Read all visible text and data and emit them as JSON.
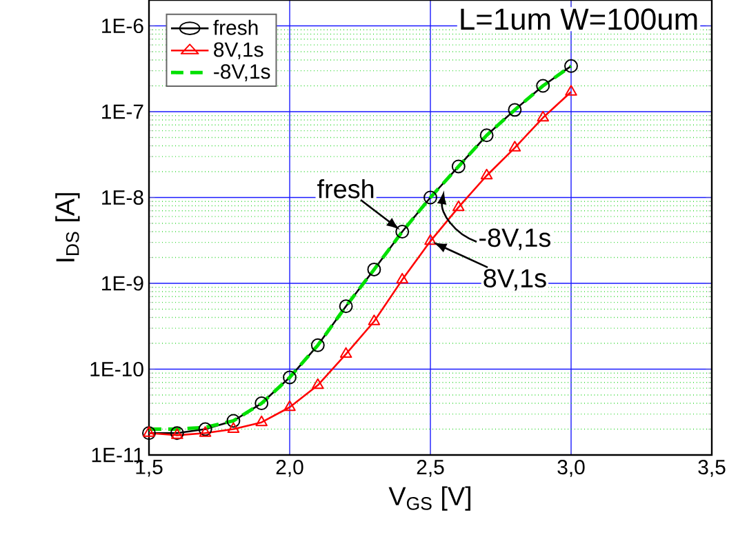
{
  "chart_data": {
    "type": "line",
    "xlabel": "V$_{GS}$ [V]",
    "ylabel": "I$_{DS}$ [A]",
    "x": [
      1.5,
      1.6,
      1.7,
      1.8,
      1.9,
      2.0,
      2.1,
      2.2,
      2.3,
      2.4,
      2.5,
      2.6,
      2.7,
      2.8,
      2.9,
      3.0
    ],
    "series": [
      {
        "name": "fresh",
        "color": "#000000",
        "marker": "circle",
        "line_style": "solid",
        "values": [
          1.8e-11,
          1.8e-11,
          2e-11,
          2.5e-11,
          4e-11,
          8e-11,
          1.9e-10,
          5.4e-10,
          1.45e-09,
          4e-09,
          1e-08,
          2.3e-08,
          5.3e-08,
          1.05e-07,
          2e-07,
          3.4e-07
        ]
      },
      {
        "name": "8V,1s",
        "color": "#ff0000",
        "marker": "triangle",
        "line_style": "solid",
        "values": [
          1.8e-11,
          1.7e-11,
          1.8e-11,
          2e-11,
          2.4e-11,
          3.6e-11,
          6.5e-11,
          1.5e-10,
          3.6e-10,
          1.1e-09,
          3.1e-09,
          7.7e-09,
          1.8e-08,
          3.8e-08,
          8.5e-08,
          1.7e-07
        ]
      },
      {
        "name": "-8V,1s",
        "color": "#00e000",
        "marker": "none",
        "line_style": "dashed",
        "values": [
          2e-11,
          2e-11,
          2.1e-11,
          2.5e-11,
          4e-11,
          8e-11,
          1.9e-10,
          5.4e-10,
          1.45e-09,
          4e-09,
          1e-08,
          2.3e-08,
          5.3e-08,
          1.05e-07,
          2e-07,
          3.4e-07
        ]
      }
    ],
    "log": "y",
    "grid": true,
    "legend": "top left",
    "xlim": [
      1.5,
      3.5
    ],
    "ylim": [
      1e-11,
      2e-06
    ],
    "xticks": [
      {
        "value": 1.5,
        "label": "1,5"
      },
      {
        "value": 2.0,
        "label": "2,0"
      },
      {
        "value": 2.5,
        "label": "2,5"
      },
      {
        "value": 3.0,
        "label": "3,0"
      },
      {
        "value": 3.5,
        "label": "3,5"
      }
    ],
    "yticks": [
      {
        "value": 1e-11,
        "label": "1E-11"
      },
      {
        "value": 2e-11,
        "label": null
      },
      {
        "value": 3e-11,
        "label": null
      },
      {
        "value": 4e-11,
        "label": null
      },
      {
        "value": 5e-11,
        "label": null
      },
      {
        "value": 6e-11,
        "label": null
      },
      {
        "value": 7e-11,
        "label": null
      },
      {
        "value": 8e-11,
        "label": null
      },
      {
        "value": 9e-11,
        "label": null
      },
      {
        "value": 1e-10,
        "label": "1E-10"
      },
      {
        "value": 2e-10,
        "label": null
      },
      {
        "value": 3e-10,
        "label": null
      },
      {
        "value": 4e-10,
        "label": null
      },
      {
        "value": 5e-10,
        "label": null
      },
      {
        "value": 6e-10,
        "label": null
      },
      {
        "value": 7e-10,
        "label": null
      },
      {
        "value": 8e-10,
        "label": null
      },
      {
        "value": 9e-10,
        "label": null
      },
      {
        "value": 1e-09,
        "label": "1E-9"
      },
      {
        "value": 2e-09,
        "label": null
      },
      {
        "value": 3e-09,
        "label": null
      },
      {
        "value": 4e-09,
        "label": null
      },
      {
        "value": 5e-09,
        "label": null
      },
      {
        "value": 6e-09,
        "label": null
      },
      {
        "value": 7e-09,
        "label": null
      },
      {
        "value": 8e-09,
        "label": null
      },
      {
        "value": 9e-09,
        "label": null
      },
      {
        "value": 1e-08,
        "label": "1E-8"
      },
      {
        "value": 2e-08,
        "label": null
      },
      {
        "value": 3e-08,
        "label": null
      },
      {
        "value": 4e-08,
        "label": null
      },
      {
        "value": 5e-08,
        "label": null
      },
      {
        "value": 6e-08,
        "label": null
      },
      {
        "value": 7e-08,
        "label": null
      },
      {
        "value": 8e-08,
        "label": null
      },
      {
        "value": 9e-08,
        "label": null
      },
      {
        "value": 1e-07,
        "label": "1E-7"
      },
      {
        "value": 2e-07,
        "label": null
      },
      {
        "value": 3e-07,
        "label": null
      },
      {
        "value": 4e-07,
        "label": null
      },
      {
        "value": 5e-07,
        "label": null
      },
      {
        "value": 6e-07,
        "label": null
      },
      {
        "value": 7e-07,
        "label": null
      },
      {
        "value": 8e-07,
        "label": null
      },
      {
        "value": 9e-07,
        "label": null
      },
      {
        "value": 1e-06,
        "label": "1E-6"
      },
      {
        "value": 2e-06,
        "label": null
      }
    ],
    "annotations": [
      "L=1um W=100um",
      {
        "text": "fresh",
        "x": 2.4,
        "y": 4e-09
      },
      {
        "text": "-8V,1s",
        "x": 2.55,
        "y": 1.3e-08
      },
      {
        "text": "8V,1s",
        "x": 2.5,
        "y": 3.1e-09
      }
    ]
  }
}
